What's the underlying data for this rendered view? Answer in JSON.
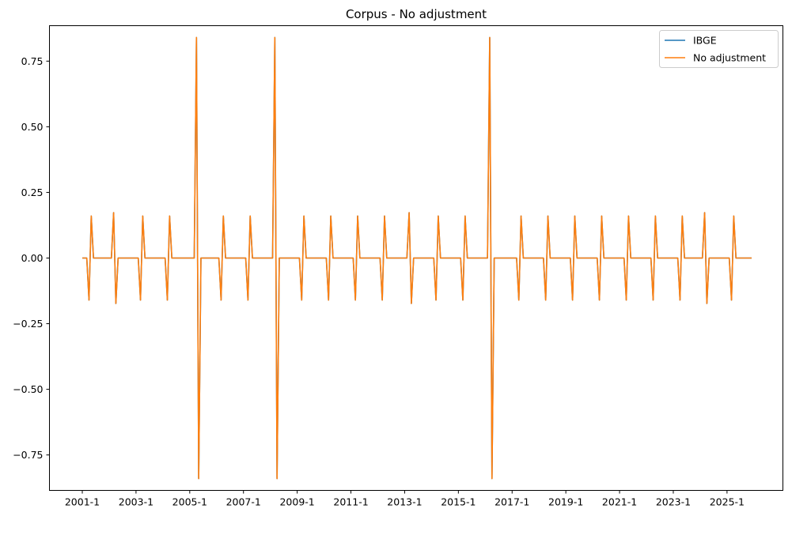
{
  "chart_data": {
    "type": "line",
    "title": "Corpus - No adjustment",
    "xlabel": "",
    "ylabel": "",
    "x_range": [
      "2001-01",
      "2025-12"
    ],
    "ylim": [
      -0.885,
      0.885
    ],
    "xticks": [
      "2001-1",
      "2003-1",
      "2005-1",
      "2007-1",
      "2009-1",
      "2011-1",
      "2013-1",
      "2015-1",
      "2017-1",
      "2019-1",
      "2021-1",
      "2023-1",
      "2025-1"
    ],
    "yticks": [
      "0.75",
      "0.50",
      "0.25",
      "0.00",
      "−0.25",
      "−0.50",
      "−0.75"
    ],
    "ytick_values": [
      0.75,
      0.5,
      0.25,
      0.0,
      -0.25,
      -0.5,
      -0.75
    ],
    "grid": false,
    "legend_position": "top-right",
    "default_value": 0,
    "series": [
      {
        "name": "IBGE",
        "color": "#1f77b4",
        "points": [
          [
            "2001-04",
            -0.16
          ],
          [
            "2001-05",
            0.16
          ],
          [
            "2002-03",
            0.173
          ],
          [
            "2002-04",
            -0.173
          ],
          [
            "2003-03",
            -0.16
          ],
          [
            "2003-04",
            0.16
          ],
          [
            "2004-03",
            -0.16
          ],
          [
            "2004-04",
            0.16
          ],
          [
            "2005-04",
            0.84
          ],
          [
            "2005-05",
            -0.84
          ],
          [
            "2006-03",
            -0.16
          ],
          [
            "2006-04",
            0.16
          ],
          [
            "2007-03",
            -0.16
          ],
          [
            "2007-04",
            0.16
          ],
          [
            "2008-03",
            0.84
          ],
          [
            "2008-04",
            -0.84
          ],
          [
            "2009-03",
            -0.16
          ],
          [
            "2009-04",
            0.16
          ],
          [
            "2010-03",
            -0.16
          ],
          [
            "2010-04",
            0.16
          ],
          [
            "2011-03",
            -0.16
          ],
          [
            "2011-04",
            0.16
          ],
          [
            "2012-03",
            -0.16
          ],
          [
            "2012-04",
            0.16
          ],
          [
            "2013-03",
            0.173
          ],
          [
            "2013-04",
            -0.173
          ],
          [
            "2014-03",
            -0.16
          ],
          [
            "2014-04",
            0.16
          ],
          [
            "2015-03",
            -0.16
          ],
          [
            "2015-04",
            0.16
          ],
          [
            "2016-03",
            0.84
          ],
          [
            "2016-04",
            -0.84
          ],
          [
            "2017-04",
            -0.16
          ],
          [
            "2017-05",
            0.16
          ],
          [
            "2018-04",
            -0.16
          ],
          [
            "2018-05",
            0.16
          ],
          [
            "2019-04",
            -0.16
          ],
          [
            "2019-05",
            0.16
          ],
          [
            "2020-04",
            -0.16
          ],
          [
            "2020-05",
            0.16
          ],
          [
            "2021-04",
            -0.16
          ],
          [
            "2021-05",
            0.16
          ],
          [
            "2022-04",
            -0.16
          ],
          [
            "2022-05",
            0.16
          ],
          [
            "2023-04",
            -0.16
          ],
          [
            "2023-05",
            0.16
          ],
          [
            "2024-03",
            0.173
          ],
          [
            "2024-04",
            -0.173
          ],
          [
            "2025-03",
            -0.16
          ],
          [
            "2025-04",
            0.16
          ]
        ]
      },
      {
        "name": "No adjustment",
        "color": "#ff7f0e",
        "points": [
          [
            "2001-04",
            -0.16
          ],
          [
            "2001-05",
            0.16
          ],
          [
            "2002-03",
            0.173
          ],
          [
            "2002-04",
            -0.173
          ],
          [
            "2003-03",
            -0.16
          ],
          [
            "2003-04",
            0.16
          ],
          [
            "2004-03",
            -0.16
          ],
          [
            "2004-04",
            0.16
          ],
          [
            "2005-04",
            0.84
          ],
          [
            "2005-05",
            -0.84
          ],
          [
            "2006-03",
            -0.16
          ],
          [
            "2006-04",
            0.16
          ],
          [
            "2007-03",
            -0.16
          ],
          [
            "2007-04",
            0.16
          ],
          [
            "2008-03",
            0.84
          ],
          [
            "2008-04",
            -0.84
          ],
          [
            "2009-03",
            -0.16
          ],
          [
            "2009-04",
            0.16
          ],
          [
            "2010-03",
            -0.16
          ],
          [
            "2010-04",
            0.16
          ],
          [
            "2011-03",
            -0.16
          ],
          [
            "2011-04",
            0.16
          ],
          [
            "2012-03",
            -0.16
          ],
          [
            "2012-04",
            0.16
          ],
          [
            "2013-03",
            0.173
          ],
          [
            "2013-04",
            -0.173
          ],
          [
            "2014-03",
            -0.16
          ],
          [
            "2014-04",
            0.16
          ],
          [
            "2015-03",
            -0.16
          ],
          [
            "2015-04",
            0.16
          ],
          [
            "2016-03",
            0.84
          ],
          [
            "2016-04",
            -0.84
          ],
          [
            "2017-04",
            -0.16
          ],
          [
            "2017-05",
            0.16
          ],
          [
            "2018-04",
            -0.16
          ],
          [
            "2018-05",
            0.16
          ],
          [
            "2019-04",
            -0.16
          ],
          [
            "2019-05",
            0.16
          ],
          [
            "2020-04",
            -0.16
          ],
          [
            "2020-05",
            0.16
          ],
          [
            "2021-04",
            -0.16
          ],
          [
            "2021-05",
            0.16
          ],
          [
            "2022-04",
            -0.16
          ],
          [
            "2022-05",
            0.16
          ],
          [
            "2023-04",
            -0.16
          ],
          [
            "2023-05",
            0.16
          ],
          [
            "2024-03",
            0.173
          ],
          [
            "2024-04",
            -0.173
          ],
          [
            "2025-03",
            -0.16
          ],
          [
            "2025-04",
            0.16
          ]
        ]
      }
    ]
  }
}
